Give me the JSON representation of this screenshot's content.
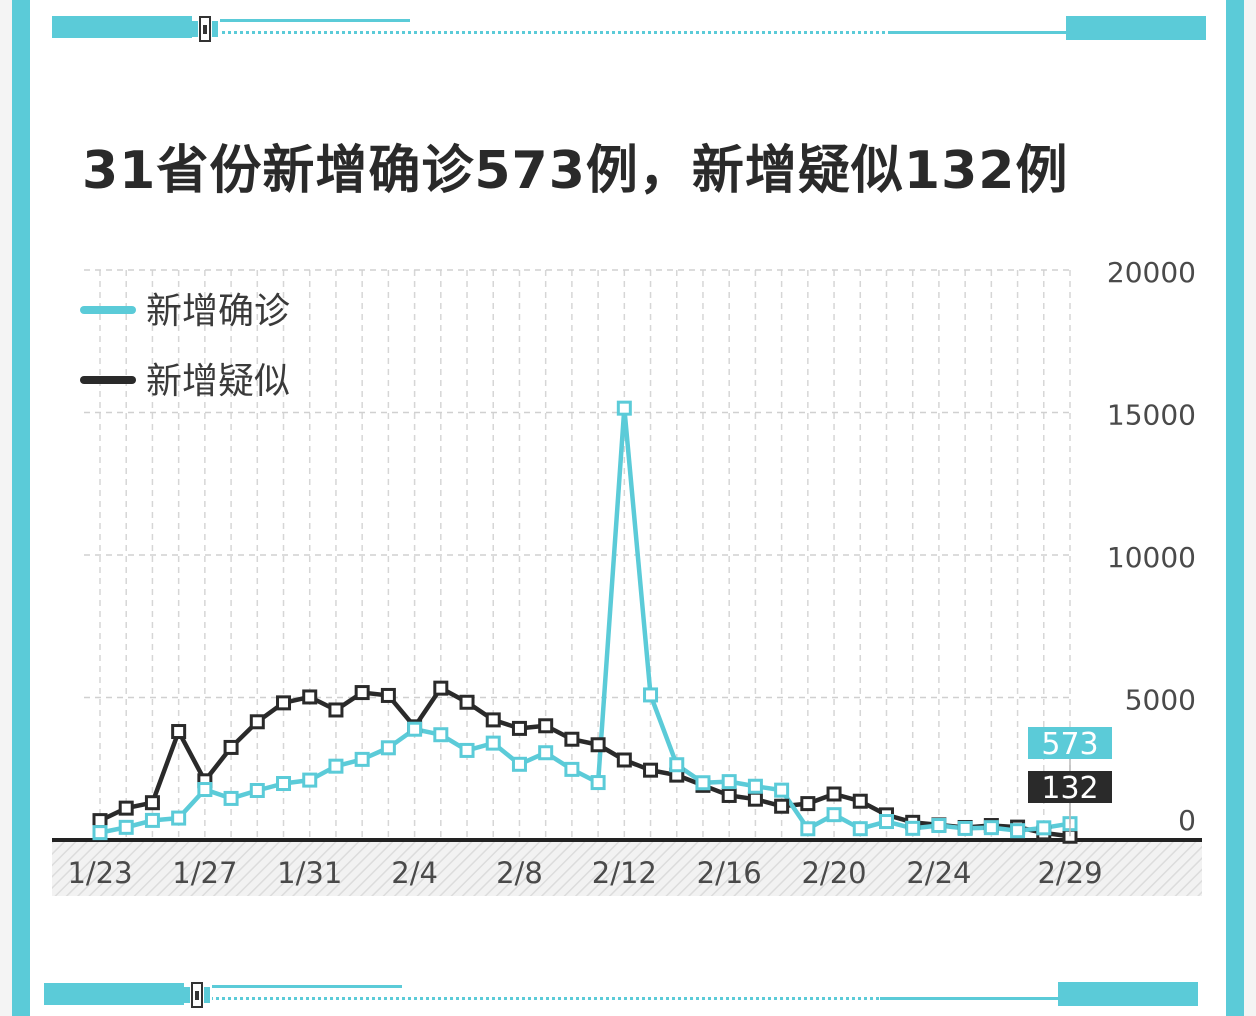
{
  "title": "31省份新增确诊573例，新增疑似132例",
  "colors": {
    "accent": "#5bcbd8",
    "dark": "#2a2a2a"
  },
  "chart_data": {
    "type": "line",
    "x": [
      "1/23",
      "1/24",
      "1/25",
      "1/26",
      "1/27",
      "1/28",
      "1/29",
      "1/30",
      "1/31",
      "2/1",
      "2/2",
      "2/3",
      "2/4",
      "2/5",
      "2/6",
      "2/7",
      "2/8",
      "2/9",
      "2/10",
      "2/11",
      "2/12",
      "2/13",
      "2/14",
      "2/15",
      "2/16",
      "2/17",
      "2/18",
      "2/19",
      "2/20",
      "2/21",
      "2/22",
      "2/23",
      "2/24",
      "2/25",
      "2/26",
      "2/27",
      "2/28",
      "2/29"
    ],
    "x_tick_labels": [
      "1/23",
      "1/27",
      "1/31",
      "2/4",
      "2/8",
      "2/12",
      "2/16",
      "2/20",
      "2/24",
      "2/29"
    ],
    "y_tick_labels": [
      "20000",
      "15000",
      "10000",
      "5000",
      "0"
    ],
    "ylim": [
      0,
      20000
    ],
    "grid": true,
    "legend_position": "top-left",
    "series": [
      {
        "name": "新增确诊",
        "color": "#5bcbd8",
        "values": [
          259,
          444,
          688,
          769,
          1771,
          1459,
          1737,
          1982,
          2102,
          2590,
          2829,
          3235,
          3887,
          3694,
          3143,
          3399,
          2656,
          3062,
          2478,
          2015,
          15152,
          5090,
          2641,
          2009,
          2048,
          1886,
          1749,
          394,
          889,
          397,
          648,
          409,
          508,
          406,
          433,
          327,
          427,
          573
        ]
      },
      {
        "name": "新增疑似",
        "color": "#2a2a2a",
        "values": [
          680,
          1118,
          1309,
          3806,
          2077,
          3248,
          4148,
          4812,
          5019,
          4562,
          5173,
          5072,
          3971,
          5328,
          4833,
          4214,
          3916,
          4008,
          3536,
          3342,
          2807,
          2450,
          2277,
          1918,
          1563,
          1432,
          1185,
          1277,
          1614,
          1361,
          882,
          620,
          530,
          439,
          508,
          452,
          248,
          132
        ]
      }
    ],
    "callouts": [
      {
        "series": "新增确诊",
        "label": "573"
      },
      {
        "series": "新增疑似",
        "label": "132"
      }
    ]
  }
}
